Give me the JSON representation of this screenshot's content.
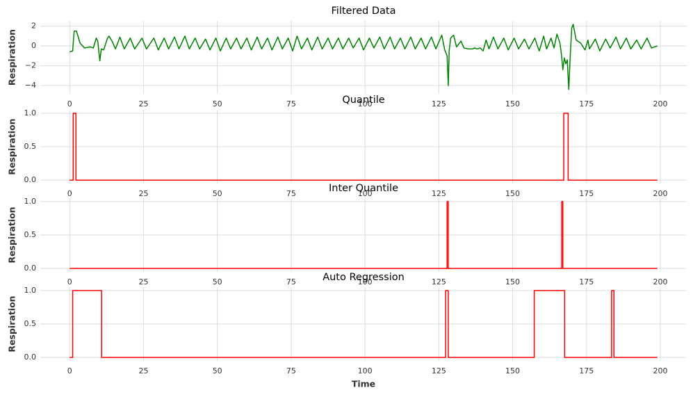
{
  "chart_data": [
    {
      "type": "line",
      "title": "Filtered Data",
      "ylabel": "Respiration",
      "color": "#008000",
      "grid": true,
      "xlim": [
        -9.95,
        208.95
      ],
      "ylim": [
        -4.84,
        2.54
      ],
      "xticks": [
        0,
        25,
        50,
        75,
        100,
        125,
        150,
        175,
        200
      ],
      "yticks": [
        {
          "value": -4,
          "label": "−4"
        },
        {
          "value": -2,
          "label": "−2"
        },
        0,
        2
      ],
      "x": [
        0,
        1,
        1.5,
        2.3,
        3.5,
        5,
        7,
        8,
        9,
        9.5,
        10.2,
        10.7,
        11.5,
        12.8,
        13.3,
        14.5,
        15.5,
        17,
        18.5,
        20.5,
        22,
        24.5,
        26,
        28.5,
        30,
        32,
        33.5,
        35.5,
        37,
        39,
        40.5,
        42.5,
        44,
        46,
        47.5,
        49.5,
        51,
        53,
        54.5,
        56.5,
        58,
        60,
        61.5,
        63.5,
        65,
        67,
        68.5,
        70.5,
        72,
        74,
        75.5,
        77,
        78.5,
        80.5,
        82,
        84,
        85.5,
        87.5,
        89,
        91,
        92.5,
        94.5,
        96,
        98,
        99.5,
        101.5,
        103,
        105,
        106.5,
        108.5,
        110,
        112,
        113.5,
        115.5,
        117,
        119,
        120.5,
        122.5,
        124,
        126,
        127,
        127.8,
        128.2,
        128.5,
        129,
        130,
        131,
        132.5,
        133.5,
        135,
        136.5,
        137,
        138,
        139,
        140,
        141,
        142,
        143.5,
        145,
        147,
        148.5,
        150.5,
        152,
        154,
        155.5,
        157.5,
        158.5,
        159,
        160.5,
        161.5,
        163,
        164,
        165,
        166,
        166.5,
        167,
        167.5,
        168,
        168.5,
        169,
        169.5,
        170,
        170.5,
        171.5,
        173,
        174.5,
        175.5,
        176,
        178,
        179.5,
        181.5,
        183,
        185,
        186.5,
        188.5,
        190,
        192,
        193.5,
        195.5,
        197,
        198,
        199
      ],
      "values": [
        -0.6,
        -0.5,
        1.5,
        1.5,
        0.3,
        -0.2,
        -0.1,
        -0.2,
        0.8,
        0.5,
        -1.5,
        -0.3,
        -0.4,
        0.8,
        1.0,
        0.4,
        -0.3,
        0.9,
        -0.3,
        0.8,
        -0.3,
        0.8,
        -0.3,
        0.8,
        -0.4,
        0.8,
        -0.3,
        0.9,
        -0.3,
        1.0,
        -0.3,
        0.8,
        -0.3,
        0.7,
        -0.4,
        0.8,
        -0.5,
        0.8,
        -0.3,
        0.8,
        -0.3,
        0.8,
        -0.4,
        0.9,
        -0.3,
        0.8,
        -0.4,
        0.9,
        -0.3,
        0.8,
        -0.5,
        1.0,
        -0.3,
        0.8,
        -0.4,
        0.9,
        -0.3,
        0.8,
        -0.3,
        0.8,
        -0.3,
        0.8,
        -0.2,
        0.8,
        -0.4,
        0.8,
        -0.2,
        0.9,
        -0.3,
        0.9,
        -0.3,
        0.8,
        -0.3,
        0.9,
        -0.3,
        0.8,
        -0.3,
        0.9,
        -0.3,
        1.1,
        -0.4,
        -1.0,
        -4.0,
        -0.5,
        0.8,
        1.1,
        -0.1,
        0.5,
        -0.2,
        -0.3,
        -0.3,
        -0.2,
        -0.3,
        -0.2,
        -0.5,
        0.6,
        -0.3,
        0.9,
        -0.3,
        0.8,
        -0.4,
        0.8,
        -0.3,
        0.7,
        -0.3,
        0.8,
        -0.1,
        -0.5,
        1.0,
        -0.3,
        0.8,
        -0.2,
        1.2,
        0.3,
        -0.8,
        -2.4,
        -1.2,
        -1.8,
        -1.4,
        -4.4,
        -1.0,
        1.8,
        2.2,
        0.6,
        0.3,
        -0.4,
        0.6,
        -0.3,
        0.7,
        -0.5,
        0.7,
        -0.2,
        0.9,
        -0.3,
        0.8,
        -0.3,
        0.6,
        -0.3,
        0.8,
        -0.2,
        -0.1,
        0.0
      ]
    },
    {
      "type": "line",
      "title": "Quantile",
      "ylabel": "Respiration",
      "color": "#ff0000",
      "grid": true,
      "xlim": [
        -9.95,
        208.95
      ],
      "ylim": [
        -0.05,
        1.05
      ],
      "xticks": [
        0,
        25,
        50,
        75,
        100,
        125,
        150,
        175,
        200
      ],
      "yticks": [
        {
          "value": 0,
          "label": "0.0"
        },
        {
          "value": 0.5,
          "label": "0.5"
        },
        {
          "value": 1,
          "label": "1.0"
        }
      ],
      "x": [
        0,
        1.2,
        1.2,
        2.1,
        2.1,
        167.3,
        167.3,
        168.8,
        168.8,
        199
      ],
      "values": [
        0,
        0,
        1,
        1,
        0,
        0,
        1,
        1,
        0,
        0
      ]
    },
    {
      "type": "line",
      "title": "Inter Quantile",
      "ylabel": "Respiration",
      "color": "#ff0000",
      "grid": true,
      "xlim": [
        -9.95,
        208.95
      ],
      "ylim": [
        -0.05,
        1.05
      ],
      "xticks": [
        0,
        25,
        50,
        75,
        100,
        125,
        150,
        175,
        200
      ],
      "yticks": [
        {
          "value": 0,
          "label": "0.0"
        },
        {
          "value": 0.5,
          "label": "0.5"
        },
        {
          "value": 1,
          "label": "1.0"
        }
      ],
      "x": [
        0,
        127.8,
        127.8,
        128.2,
        128.2,
        166.6,
        166.6,
        167.0,
        167.0,
        199
      ],
      "values": [
        0,
        0,
        1,
        1,
        0,
        0,
        1,
        1,
        0,
        0
      ]
    },
    {
      "type": "line",
      "title": "Auto Regression",
      "ylabel": "Respiration",
      "xlabel": "Time",
      "color": "#ff0000",
      "grid": true,
      "xlim": [
        -9.95,
        208.95
      ],
      "ylim": [
        -0.05,
        1.05
      ],
      "xticks": [
        0,
        25,
        50,
        75,
        100,
        125,
        150,
        175,
        200
      ],
      "yticks": [
        {
          "value": 0,
          "label": "0.0"
        },
        {
          "value": 0.5,
          "label": "0.5"
        },
        {
          "value": 1,
          "label": "1.0"
        }
      ],
      "x": [
        0,
        1,
        1,
        10.8,
        10.8,
        127.3,
        127.3,
        128.2,
        128.2,
        157.3,
        157.3,
        167.6,
        167.6,
        183.5,
        183.5,
        184.3,
        184.3,
        199
      ],
      "values": [
        0,
        0,
        1,
        1,
        0,
        0,
        1,
        1,
        0,
        0,
        1,
        1,
        0,
        0,
        1,
        1,
        0,
        0
      ]
    }
  ]
}
